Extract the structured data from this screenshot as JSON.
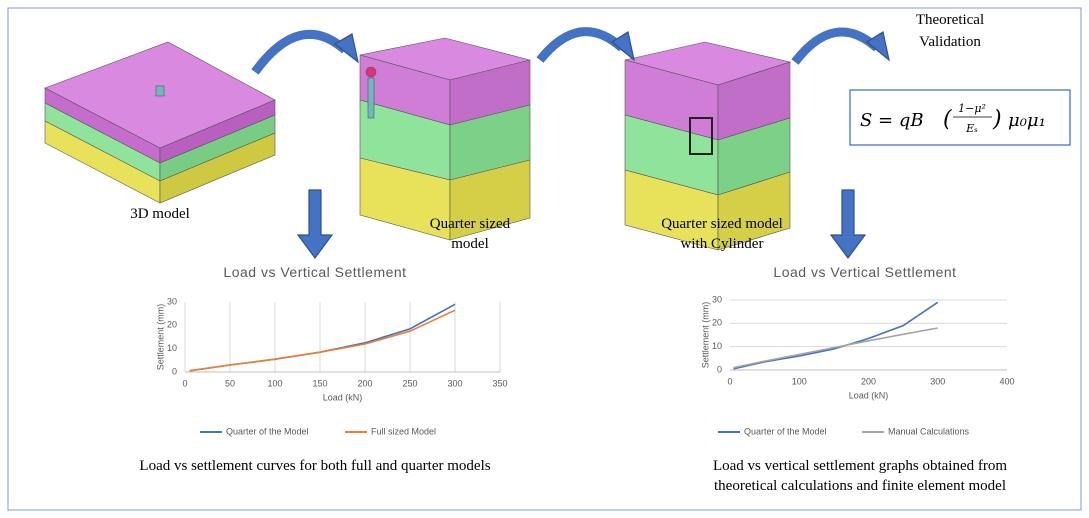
{
  "diagram": {
    "labels": {
      "model_3d": "3D model",
      "quarter_1": "Quarter sized",
      "quarter_2": "model",
      "cyl_1": "Quarter sized model",
      "cyl_2": "with Cylinder",
      "theory_1": "Theoretical",
      "theory_2": "Validation"
    },
    "formula": {
      "lhs": "S = qB",
      "numerator": "1−μ²",
      "denominator": "Eₛ",
      "rhs": "μ₀μ₁"
    },
    "captions": [
      "Load vs settlement curves for both full and quarter models",
      "Load vs vertical settlement graphs obtained from",
      "theoretical calculations and finite element model"
    ]
  },
  "chart_data": [
    {
      "type": "line",
      "title": "Load vs Vertical Settlement",
      "x_label": "Load (kN)",
      "y_label": "Settlement (mm)",
      "x": [
        5,
        50,
        100,
        150,
        200,
        250,
        300
      ],
      "series": [
        {
          "name": "Quarter of the Model",
          "color": "#4472c4",
          "values": [
            0.5,
            3,
            5.5,
            8.5,
            12.5,
            18.5,
            29
          ]
        },
        {
          "name": "Full sized Model",
          "color": "#ed7d31",
          "values": [
            0.5,
            3,
            5.5,
            8.5,
            12,
            17.5,
            26.5
          ]
        }
      ],
      "xlim": [
        0,
        350
      ],
      "xticks": [
        0,
        50,
        100,
        150,
        200,
        250,
        300,
        350
      ],
      "ylim": [
        0,
        30
      ],
      "yticks": [
        0,
        10,
        20,
        30
      ],
      "grid": "x"
    },
    {
      "type": "line",
      "title": "Load vs Vertical Settlement",
      "x_label": "Load (kN)",
      "y_label": "Settlement (mm)",
      "x": [
        5,
        50,
        100,
        150,
        200,
        250,
        300
      ],
      "series": [
        {
          "name": "Quarter of the Model",
          "color": "#4472c4",
          "values": [
            0.5,
            3.5,
            6,
            9,
            13.5,
            19,
            29
          ]
        },
        {
          "name": "Manual Calculations",
          "color": "#a5a5a5",
          "values": [
            1,
            3.8,
            6.7,
            9.6,
            12.5,
            15.3,
            18
          ]
        }
      ],
      "xlim": [
        0,
        400
      ],
      "xticks": [
        0,
        100,
        200,
        300,
        400
      ],
      "ylim": [
        0,
        30
      ],
      "yticks": [
        0,
        10,
        20,
        30
      ],
      "grid": "y"
    }
  ]
}
